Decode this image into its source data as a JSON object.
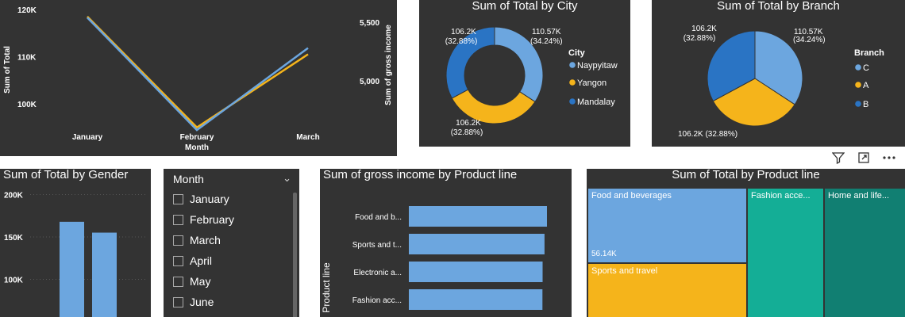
{
  "colors": {
    "light_blue": "#6CA6DF",
    "yellow": "#F5B41B",
    "dark_blue": "#2A74C4",
    "teal": "#14AE96",
    "dark_teal": "#117F72",
    "bg": "#333333"
  },
  "visual_header": {
    "icons": [
      "filter-icon",
      "focus-mode-icon",
      "more-options-icon"
    ]
  },
  "line_chart": {
    "chart_data": {
      "type": "line",
      "categories": [
        "January",
        "February",
        "March"
      ],
      "series": [
        {
          "name": "Sum of Total",
          "axis": "left",
          "color": "#F5B41B",
          "values": [
            118500,
            95000,
            110500
          ]
        },
        {
          "name": "Sum of gross income",
          "axis": "right",
          "color": "#6CA6DF",
          "values": [
            5540,
            4580,
            5280
          ]
        }
      ],
      "xlabel": "Month",
      "ylabel_left": "Sum of Total",
      "ylabel_right": "Sum of gross income",
      "yticks_left": [
        "120K",
        "110K",
        "100K"
      ],
      "yticks_right": [
        "5,500",
        "5,000"
      ]
    }
  },
  "city_donut": {
    "title": "Sum of Total by City",
    "legend_title": "City",
    "chart_data": {
      "type": "pie",
      "title": "Sum of Total by City",
      "slices": [
        {
          "label": "Naypyitaw",
          "value": 110.57,
          "color": "#6CA6DF",
          "text": "110.57K",
          "pct": "(34.24%)"
        },
        {
          "label": "Yangon",
          "value": 106.2,
          "color": "#F5B41B",
          "text": "106.2K",
          "pct": "(32.88%)"
        },
        {
          "label": "Mandalay",
          "value": 106.2,
          "color": "#2A74C4",
          "text": "106.2K",
          "pct": "(32.88%)"
        }
      ]
    }
  },
  "branch_pie": {
    "title": "Sum of Total by Branch",
    "legend_title": "Branch",
    "chart_data": {
      "type": "pie",
      "title": "Sum of Total by Branch",
      "slices": [
        {
          "label": "C",
          "value": 110.57,
          "color": "#6CA6DF",
          "text": "110.57K",
          "pct": "(34.24%)"
        },
        {
          "label": "A",
          "value": 106.2,
          "color": "#F5B41B",
          "text": "106.2K (32.88%)",
          "pct": ""
        },
        {
          "label": "B",
          "value": 106.2,
          "color": "#2A74C4",
          "text": "106.2K",
          "pct": "(32.88%)"
        }
      ]
    }
  },
  "gender_bar": {
    "title": "Sum of Total by Gender",
    "chart_data": {
      "type": "bar",
      "title": "Sum of Total by Gender",
      "categories": [
        "",
        ""
      ],
      "values": [
        167900,
        155100
      ],
      "yticks": [
        "200K",
        "150K",
        "100K"
      ]
    }
  },
  "month_slicer": {
    "header": "Month",
    "items": [
      "January",
      "February",
      "March",
      "April",
      "May",
      "June"
    ]
  },
  "product_bar": {
    "title": "Sum of gross income by Product line",
    "ylabel": "Product line",
    "chart_data": {
      "type": "bar",
      "orientation": "horizontal",
      "title": "Sum of gross income by Product line",
      "categories": [
        "Food and b...",
        "Sports and t...",
        "Electronic a...",
        "Fashion acc..."
      ],
      "values": [
        2673,
        2625,
        2588,
        2586
      ]
    }
  },
  "treemap": {
    "title": "Sum of Total by Product line",
    "chart_data": {
      "type": "treemap",
      "title": "Sum of Total by Product line",
      "items": [
        {
          "label": "Food and beverages",
          "value_label": "56.14K",
          "color": "#6CA6DF"
        },
        {
          "label": "Sports and travel",
          "value_label": "",
          "color": "#F5B41B"
        },
        {
          "label": "Fashion acce...",
          "value_label": "",
          "color": "#14AE96"
        },
        {
          "label": "Home and life...",
          "value_label": "",
          "color": "#117F72"
        }
      ]
    }
  }
}
